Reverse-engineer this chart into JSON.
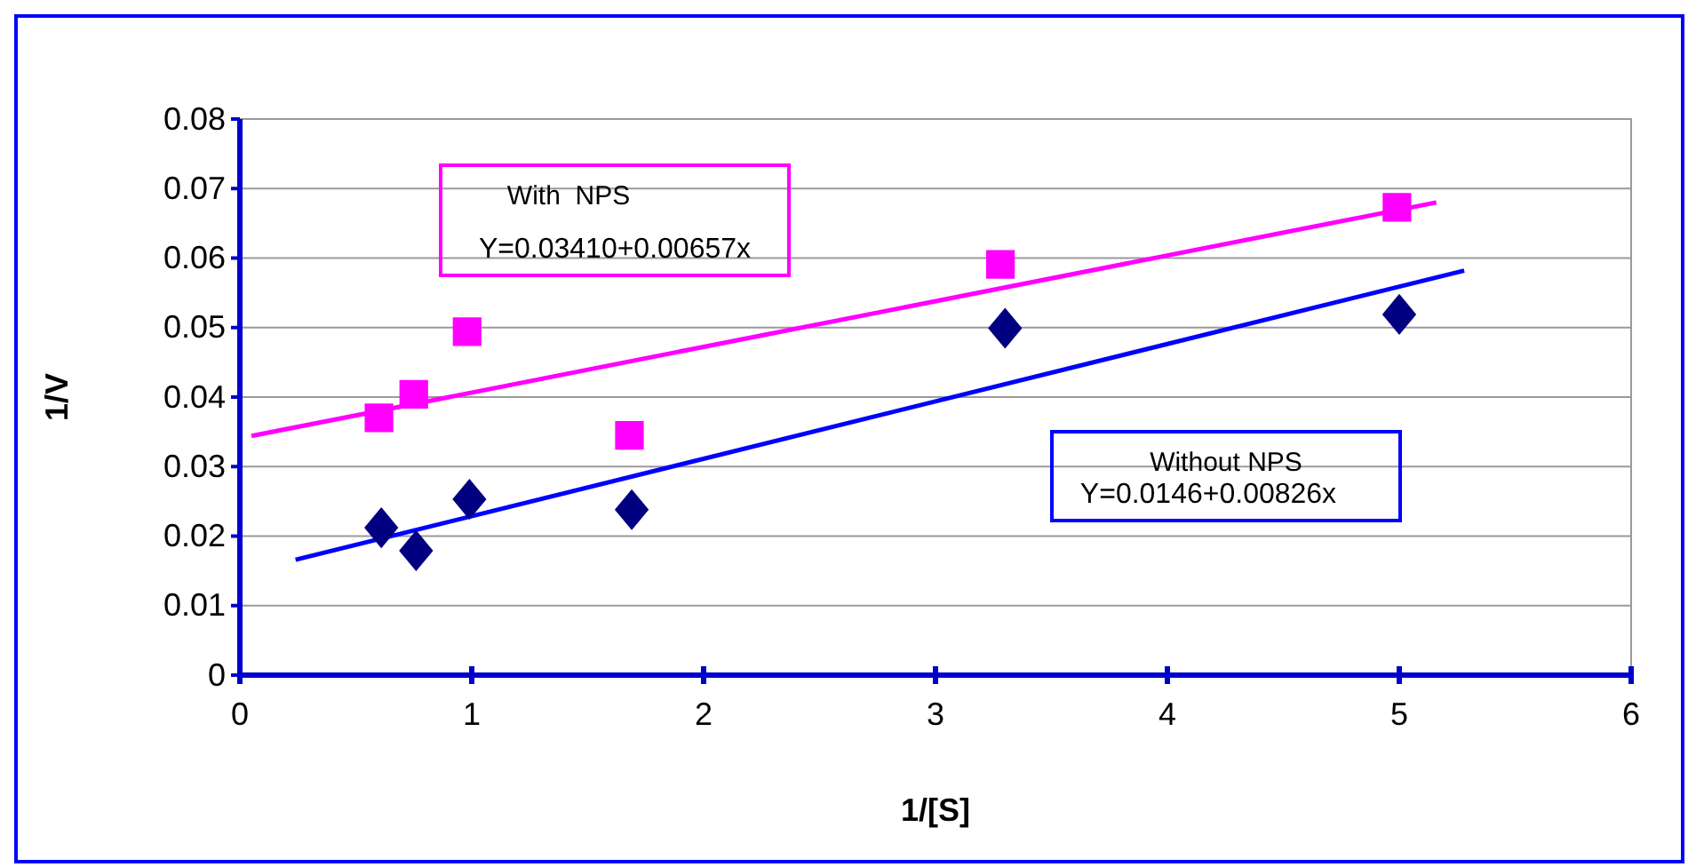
{
  "chart_data": {
    "type": "scatter",
    "xlabel": "1/[S]",
    "ylabel": "1/V",
    "xlim": [
      0,
      6
    ],
    "xticks": [
      0,
      1,
      2,
      3,
      4,
      5,
      6
    ],
    "ylim": [
      0,
      0.08
    ],
    "yticks": [
      0,
      0.01,
      0.02,
      0.03,
      0.04,
      0.05,
      0.06,
      0.07,
      0.08
    ],
    "grid": "y",
    "series": [
      {
        "marker": "square",
        "color": "#ff00ff",
        "x": [
          0.6,
          0.75,
          0.98,
          1.68,
          3.28,
          4.99
        ],
        "values": [
          0.037,
          0.0404,
          0.0494,
          0.0345,
          0.0591,
          0.0673
        ]
      },
      {
        "marker": "diamond",
        "color": "#000080",
        "x": [
          0.61,
          0.76,
          0.99,
          1.69,
          3.3,
          5.0
        ],
        "values": [
          0.0212,
          0.0179,
          0.0253,
          0.0238,
          0.0499,
          0.0519
        ]
      },
      {
        "type": "line",
        "color": "#ff00ff",
        "x": [
          0.05,
          5.16
        ],
        "values": [
          0.0344,
          0.068
        ]
      },
      {
        "type": "line",
        "color": "#0000ff",
        "x": [
          0.24,
          5.28
        ],
        "values": [
          0.0166,
          0.0582
        ]
      }
    ],
    "annotations": [
      "With  NPS",
      "Y=0.03410+0.00657x",
      "Without NPS",
      "Y=0.0146+0.00826x"
    ]
  }
}
